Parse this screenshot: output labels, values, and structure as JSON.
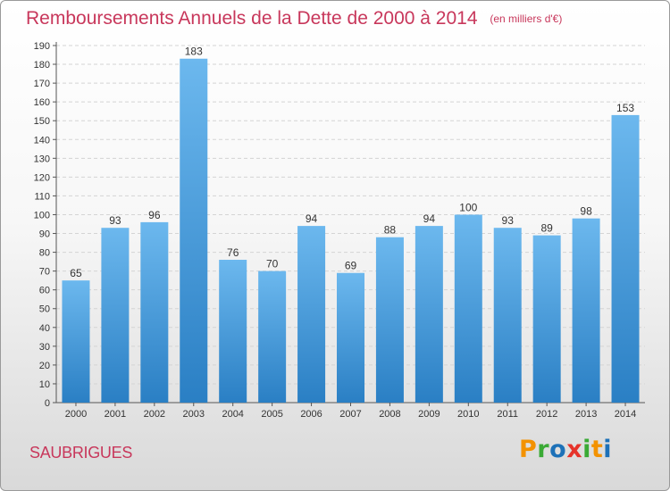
{
  "title": "Remboursements Annuels de la Dette de 2000 à 2014",
  "unit": "(en milliers d'€)",
  "commune": "SAUBRIGUES",
  "logo": {
    "letters": [
      "P",
      "r",
      "o",
      "x",
      "i",
      "t",
      "i"
    ],
    "colors": [
      "#f39200",
      "#3aaa35",
      "#1d71b8",
      "#e6332a",
      "#3aaa35",
      "#f39200",
      "#1d71b8"
    ]
  },
  "colors": {
    "bar_top": "#6cb8ee",
    "bar_bottom": "#2a7fc4",
    "title": "#c8375b"
  },
  "chart_data": {
    "type": "bar",
    "categories": [
      "2000",
      "2001",
      "2002",
      "2003",
      "2004",
      "2005",
      "2006",
      "2007",
      "2008",
      "2009",
      "2010",
      "2011",
      "2012",
      "2013",
      "2014"
    ],
    "values": [
      65,
      93,
      96,
      183,
      76,
      70,
      94,
      69,
      88,
      94,
      100,
      93,
      89,
      98,
      153
    ],
    "ylim": [
      0,
      190
    ],
    "ytick_step": 10,
    "grid": true
  }
}
